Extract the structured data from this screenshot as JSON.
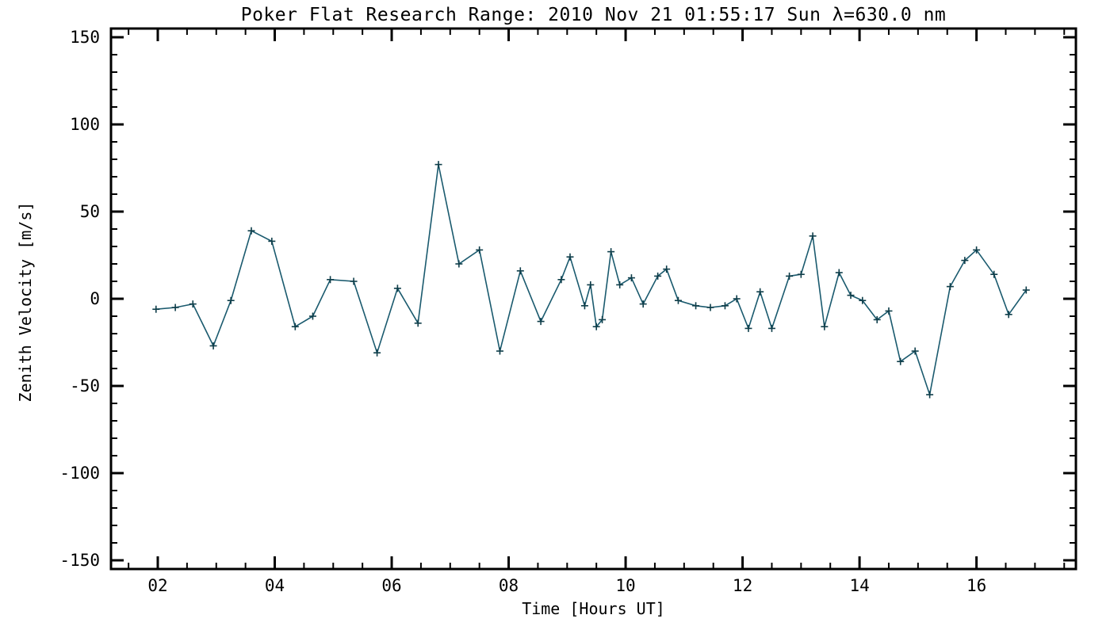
{
  "chart_data": {
    "type": "line",
    "title": "Poker Flat Research Range: 2010 Nov 21 01:55:17 Sun λ=630.0 nm",
    "xlabel": "Time [Hours UT]",
    "ylabel": "Zenith Velocity [m/s]",
    "xlim": [
      1.2,
      17.7
    ],
    "ylim": [
      -150,
      150
    ],
    "x_ticks": [
      2,
      4,
      6,
      8,
      10,
      12,
      14,
      16
    ],
    "x_tick_labels": [
      "02",
      "04",
      "06",
      "08",
      "10",
      "12",
      "14",
      "16"
    ],
    "x_minor_step": 0.5,
    "y_ticks": [
      -150,
      -100,
      -50,
      0,
      50,
      100,
      150
    ],
    "y_tick_labels": [
      "-150",
      "-100",
      "-50",
      "0",
      "50",
      "100",
      "150"
    ],
    "y_minor_step": 10,
    "grid": false,
    "legend": "none",
    "marker": "plus",
    "line_color": "#1a5a6e",
    "marker_color": "#0e3d49",
    "frame_color": "#000000",
    "background": "#ffffff",
    "series": [
      {
        "name": "zenith_velocity",
        "x": [
          1.97,
          2.3,
          2.6,
          2.95,
          3.25,
          3.6,
          3.95,
          4.35,
          4.65,
          4.95,
          5.35,
          5.75,
          6.1,
          6.45,
          6.8,
          7.15,
          7.5,
          7.85,
          8.2,
          8.55,
          8.9,
          9.05,
          9.3,
          9.4,
          9.5,
          9.6,
          9.75,
          9.9,
          10.1,
          10.3,
          10.55,
          10.7,
          10.9,
          11.2,
          11.45,
          11.7,
          11.9,
          12.1,
          12.3,
          12.5,
          12.8,
          13.0,
          13.2,
          13.4,
          13.65,
          13.85,
          14.05,
          14.3,
          14.5,
          14.7,
          14.95,
          15.2,
          15.55,
          15.8,
          16.0,
          16.3,
          16.55,
          16.85
        ],
        "y": [
          -6,
          -5,
          -3,
          -27,
          -1,
          39,
          33,
          -16,
          -10,
          11,
          10,
          -31,
          6,
          -14,
          77,
          20,
          28,
          -30,
          16,
          -13,
          11,
          24,
          -4,
          8,
          -16,
          -12,
          27,
          8,
          12,
          -3,
          13,
          17,
          -1,
          -4,
          -5,
          -4,
          0,
          -17,
          4,
          -17,
          13,
          14,
          36,
          -16,
          15,
          2,
          -1,
          -12,
          -7,
          -36,
          -30,
          -55,
          7,
          22,
          28,
          14,
          -9,
          5
        ]
      }
    ]
  }
}
